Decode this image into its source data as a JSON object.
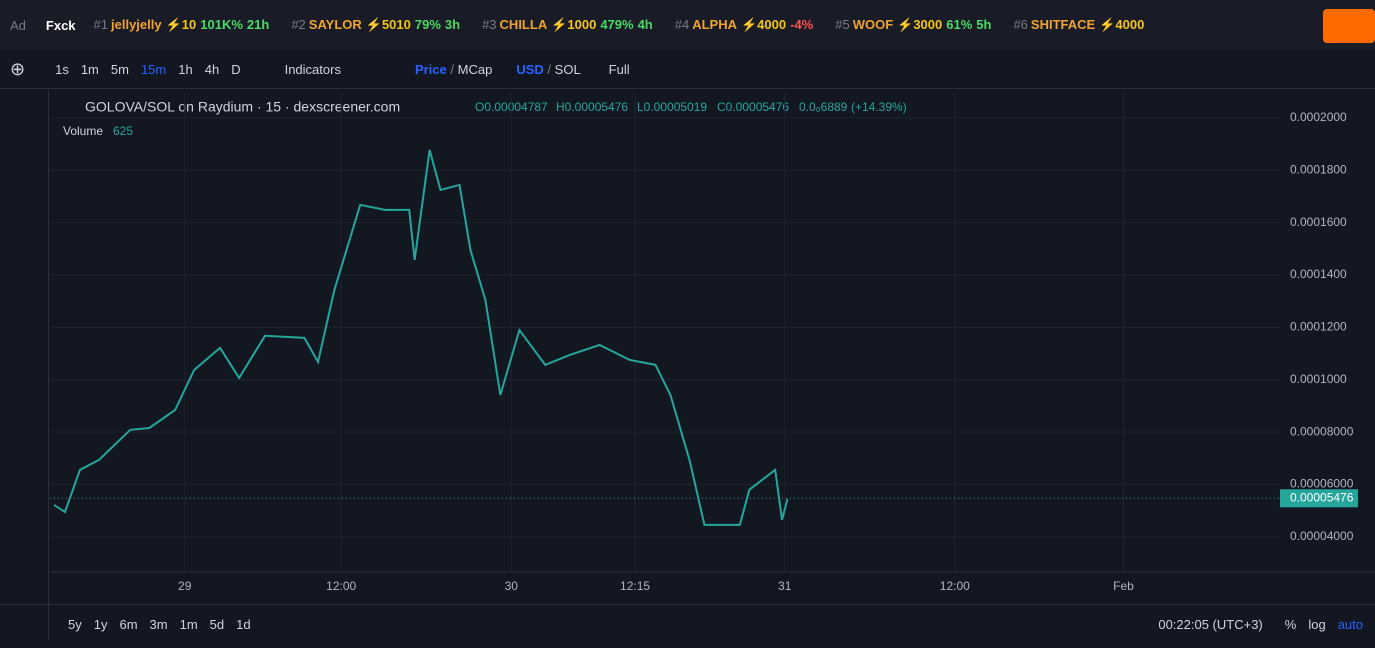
{
  "ticker": {
    "ad": "Ad",
    "ad_name": "Fxck",
    "items": [
      {
        "rank": "#1",
        "name": "jellyjelly",
        "boost": "⚡10",
        "change": "101K%",
        "age": "21h"
      },
      {
        "rank": "#2",
        "name": "SAYLOR",
        "boost": "⚡5010",
        "change": "79%",
        "age": "3h"
      },
      {
        "rank": "#3",
        "name": "CHILLA",
        "boost": "⚡1000",
        "change": "479%",
        "age": "4h"
      },
      {
        "rank": "#4",
        "name": "ALPHA",
        "boost": "⚡4000",
        "change": "-4%"
      },
      {
        "rank": "#5",
        "name": "WOOF",
        "boost": "⚡3000",
        "change": "61%",
        "age": "5h"
      },
      {
        "rank": "#6",
        "name": "SHITFACE",
        "boost": "⚡4000"
      }
    ]
  },
  "toolbar": {
    "intervals": [
      "1s",
      "1m",
      "5m",
      "15m",
      "1h",
      "4h",
      "D"
    ],
    "indicators": "Indicators",
    "price": "Price",
    "mcap": "MCap",
    "usd": "USD",
    "sol": "SOL",
    "full": "Full"
  },
  "legend": {
    "pair": "GOLOVA/SOL on Raydium · 15 · dexscreener.com",
    "open": "O0.00004787",
    "high": "H0.00005476",
    "low": "L0.00005019",
    "close": "C0.00005476",
    "volume_value": "0.0₀6889",
    "change": "(+14.39%)",
    "volume_label": "Volume",
    "volume": "625"
  },
  "bottom": {
    "ranges": [
      "5y",
      "1y",
      "6m",
      "3m",
      "1m",
      "5d",
      "1d"
    ],
    "clock": "00:22:05 (UTC+3)",
    "percent": "%",
    "log": "log",
    "auto": "auto"
  },
  "chart_data": {
    "type": "line",
    "color": "#26a69a",
    "x": [
      -9.6,
      -8.8,
      -7.7,
      -6.3,
      -4.0,
      -2.6,
      -0.7,
      0.7,
      2.6,
      4.0,
      5.9,
      8.8,
      9.8,
      11.0,
      12.9,
      14.7,
      16.5,
      16.9,
      18.0,
      18.8,
      20.2,
      21.0,
      22.1,
      23.2,
      24.6,
      26.5,
      28.3,
      30.5,
      32.7,
      34.6,
      35.7,
      37.1,
      38.2,
      40.8,
      41.5,
      43.4,
      43.9,
      44.3
    ],
    "values": [
      5.22e-05,
      4.95e-05,
      6.56e-05,
      6.94e-05,
      8.09e-05,
      8.16e-05,
      8.85e-05,
      0.0001038,
      0.0001122,
      0.0001007,
      0.0001168,
      0.000116,
      0.0001068,
      0.0001343,
      0.0001668,
      0.0001649,
      0.0001649,
      0.0001458,
      0.0001878,
      0.0001725,
      0.0001744,
      0.0001496,
      0.0001305,
      9.42e-05,
      0.000119,
      0.0001057,
      0.0001095,
      0.0001133,
      0.0001076,
      0.0001057,
      9.42e-05,
      6.94e-05,
      4.46e-05,
      4.46e-05,
      5.8e-05,
      6.56e-05,
      4.65e-05,
      5.45e-05
    ],
    "xlim": [
      -9.9,
      80.5
    ],
    "ylim": [
      2.66e-05,
      0.0002099
    ],
    "xticks": [
      {
        "value": 0,
        "label": "29"
      },
      {
        "value": 11.5,
        "label": "12:00"
      },
      {
        "value": 24,
        "label": "30"
      },
      {
        "value": 33.1,
        "label": "12:15"
      },
      {
        "value": 44.1,
        "label": "31"
      },
      {
        "value": 56.6,
        "label": "12:00"
      },
      {
        "value": 69,
        "label": "Feb"
      }
    ],
    "yticks": [
      {
        "value": 4e-05,
        "label": "0.00004000"
      },
      {
        "value": 6e-05,
        "label": "0.00006000"
      },
      {
        "value": 8e-05,
        "label": "0.00008000"
      },
      {
        "value": 0.0001,
        "label": "0.0001000"
      },
      {
        "value": 0.00012,
        "label": "0.0001200"
      },
      {
        "value": 0.00014,
        "label": "0.0001400"
      },
      {
        "value": 0.00016,
        "label": "0.0001600"
      },
      {
        "value": 0.00018,
        "label": "0.0001800"
      },
      {
        "value": 0.0002,
        "label": "0.0002000"
      }
    ],
    "last_price": {
      "value": 5.476e-05,
      "label": "0.00005476"
    },
    "grid": true
  }
}
